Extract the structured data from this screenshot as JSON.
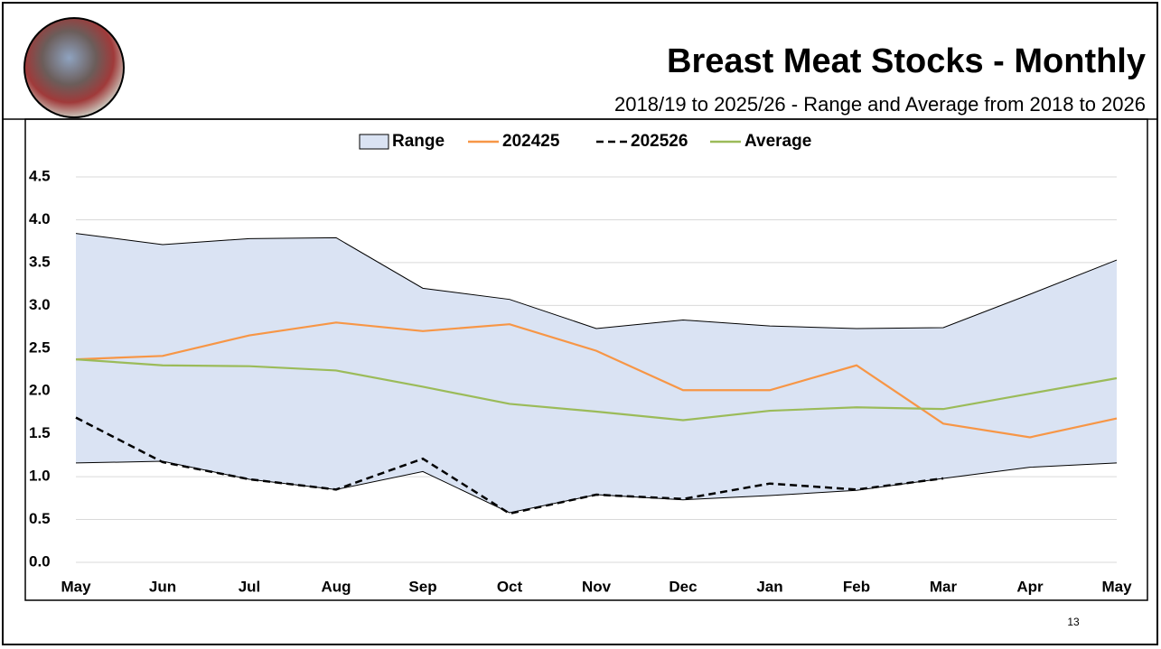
{
  "page_number": "13",
  "chart_data": {
    "type": "line",
    "title": "Breast Meat Stocks - Monthly",
    "subtitle": "2018/19 to 2025/26 - Range and Average from 2018 to 2026",
    "categories": [
      "May",
      "Jun",
      "Jul",
      "Aug",
      "Sep",
      "Oct",
      "Nov",
      "Dec",
      "Jan",
      "Feb",
      "Mar",
      "Apr",
      "May"
    ],
    "ylim": [
      0,
      4.5
    ],
    "yticks": [
      {
        "value": 0,
        "label": "0.0"
      },
      0.5,
      {
        "value": 1,
        "label": "1.0"
      },
      1.5,
      {
        "value": 2,
        "label": "2.0"
      },
      2.5,
      {
        "value": 3,
        "label": "3.0"
      },
      3.5,
      {
        "value": 4,
        "label": "4.0"
      },
      4.5
    ],
    "grid": true,
    "legend": "top",
    "series": [
      {
        "name": "Range",
        "type": "range",
        "color": "#dae3f3",
        "high": [
          3.84,
          3.71,
          3.78,
          3.79,
          3.2,
          3.07,
          2.73,
          2.83,
          2.76,
          2.73,
          2.74,
          3.13,
          3.53
        ],
        "low": [
          1.16,
          1.18,
          0.97,
          0.85,
          1.06,
          0.58,
          0.79,
          0.73,
          0.78,
          0.84,
          0.98,
          1.11,
          1.16
        ]
      },
      {
        "name": "202425",
        "color": "#f79646",
        "values": [
          2.37,
          2.41,
          2.65,
          2.8,
          2.7,
          2.78,
          2.47,
          2.01,
          2.01,
          2.3,
          1.62,
          1.46,
          1.68
        ]
      },
      {
        "name": "202526",
        "color": "#000000",
        "dashed": true,
        "values": [
          1.69,
          1.17,
          0.97,
          0.85,
          1.21,
          0.57,
          0.79,
          0.74,
          0.92,
          0.85,
          0.98,
          null,
          null
        ]
      },
      {
        "name": "Average",
        "color": "#9bbb59",
        "values": [
          2.37,
          2.3,
          2.29,
          2.24,
          2.05,
          1.85,
          1.76,
          1.66,
          1.77,
          1.81,
          1.79,
          1.97,
          2.15
        ]
      }
    ]
  }
}
